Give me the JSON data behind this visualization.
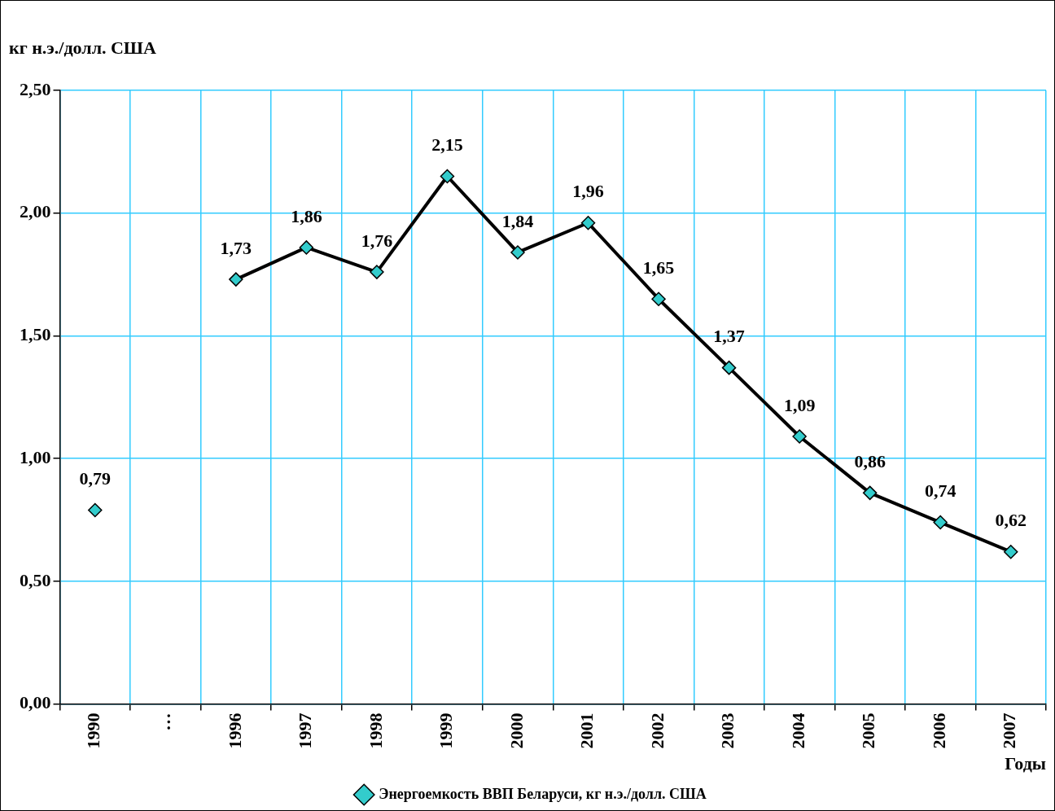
{
  "chart_data": {
    "type": "line",
    "ylabel": "кг н.э./долл. США",
    "xlabel": "Годы",
    "categories": [
      "1990",
      "…",
      "1996",
      "1997",
      "1998",
      "1999",
      "2000",
      "2001",
      "2002",
      "2003",
      "2004",
      "2005",
      "2006",
      "2007"
    ],
    "series": [
      {
        "name": "Энергоемкость ВВП Беларуси, кг н.э./долл. США",
        "color": "#000000",
        "values": [
          0.79,
          null,
          1.73,
          1.86,
          1.76,
          2.15,
          1.84,
          1.96,
          1.65,
          1.37,
          1.09,
          0.86,
          0.74,
          0.62
        ],
        "value_labels": [
          "0,79",
          null,
          "1,73",
          "1,86",
          "1,76",
          "2,15",
          "1,84",
          "1,96",
          "1,65",
          "1,37",
          "1,09",
          "0,86",
          "0,74",
          "0,62"
        ]
      }
    ],
    "ylim": [
      0,
      2.5
    ],
    "yticks": [
      {
        "value": 0,
        "label": "0,00"
      },
      {
        "value": 0.5,
        "label": "0,50"
      },
      {
        "value": 1,
        "label": "1,00"
      },
      {
        "value": 1.5,
        "label": "1,50"
      },
      {
        "value": 2,
        "label": "2,00"
      },
      {
        "value": 2.5,
        "label": "2,50"
      }
    ],
    "grid": true,
    "legend": "bottom",
    "marker": "diamond",
    "line_style": "solid"
  }
}
